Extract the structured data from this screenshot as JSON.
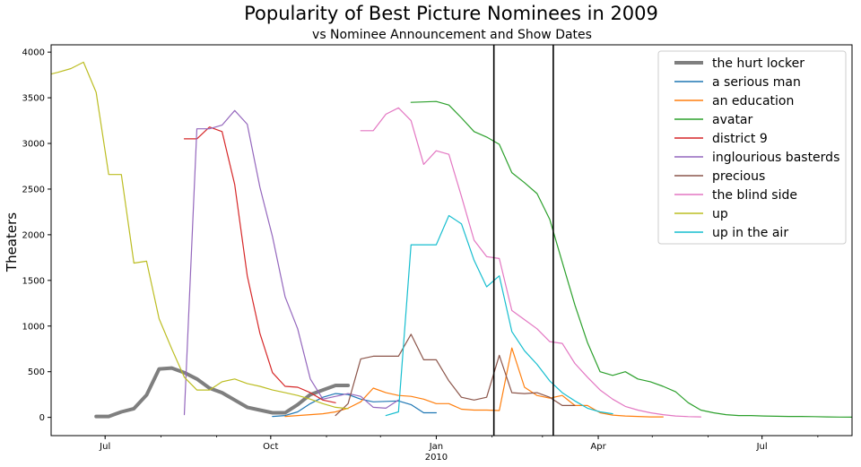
{
  "chart_data": {
    "type": "line",
    "title": "Popularity of Best Picture Nominees in 2009",
    "subtitle": "vs Nominee Announcement and Show Dates",
    "xlabel": "",
    "ylabel": "Theaters",
    "x_start": "2009-06-01",
    "x_end": "2010-08-20",
    "ylim": [
      -200,
      4080
    ],
    "y_ticks": [
      0,
      500,
      1000,
      1500,
      2000,
      2500,
      3000,
      3500,
      4000
    ],
    "x_ticks": [
      {
        "date": "2009-07-01",
        "label": "Jul"
      },
      {
        "date": "2009-10-01",
        "label": "Oct"
      },
      {
        "date": "2010-01-01",
        "label": "Jan"
      },
      {
        "date": "2010-04-01",
        "label": "Apr"
      },
      {
        "date": "2010-07-01",
        "label": "Jul"
      }
    ],
    "x_sublabel": {
      "date": "2010-01-01",
      "label": "2010"
    },
    "grid": false,
    "legend_position": "top-right",
    "vlines": [
      "2010-02-02",
      "2010-03-07"
    ],
    "series": [
      {
        "name": "the hurt locker",
        "color": "#7f7f7f",
        "width": 4,
        "x": [
          "2009-06-26",
          "2009-07-03",
          "2009-07-10",
          "2009-07-17",
          "2009-07-24",
          "2009-07-31",
          "2009-08-07",
          "2009-08-14",
          "2009-08-21",
          "2009-08-28",
          "2009-09-04",
          "2009-09-11",
          "2009-09-18",
          "2009-09-25",
          "2009-10-02",
          "2009-10-09",
          "2009-10-16",
          "2009-10-23",
          "2009-10-30",
          "2009-11-06",
          "2009-11-13"
        ],
        "values": [
          10,
          10,
          60,
          95,
          245,
          530,
          540,
          490,
          420,
          320,
          270,
          190,
          110,
          80,
          50,
          50,
          140,
          250,
          300,
          350,
          350
        ]
      },
      {
        "name": "a serious man",
        "color": "#1f77b4",
        "width": 1.2,
        "x": [
          "2009-10-02",
          "2009-10-09",
          "2009-10-16",
          "2009-10-23",
          "2009-10-30",
          "2009-11-06",
          "2009-11-13",
          "2009-11-20",
          "2009-11-27",
          "2009-12-04",
          "2009-12-11",
          "2009-12-18",
          "2009-12-25",
          "2010-01-01"
        ],
        "values": [
          10,
          20,
          60,
          150,
          220,
          260,
          250,
          200,
          170,
          175,
          180,
          140,
          50,
          50
        ]
      },
      {
        "name": "an education",
        "color": "#ff7f0e",
        "width": 1.2,
        "x": [
          "2009-10-09",
          "2009-10-16",
          "2009-10-23",
          "2009-10-30",
          "2009-11-06",
          "2009-11-13",
          "2009-11-20",
          "2009-11-27",
          "2009-12-04",
          "2009-12-11",
          "2009-12-18",
          "2009-12-25",
          "2010-01-01",
          "2010-01-08",
          "2010-01-15",
          "2010-01-22",
          "2010-01-29",
          "2010-02-05",
          "2010-02-12",
          "2010-02-19",
          "2010-02-26",
          "2010-03-05",
          "2010-03-12",
          "2010-03-19",
          "2010-03-26",
          "2010-04-02",
          "2010-04-09",
          "2010-04-16",
          "2010-04-23",
          "2010-04-30",
          "2010-05-07"
        ],
        "values": [
          10,
          20,
          30,
          40,
          60,
          100,
          170,
          320,
          270,
          240,
          230,
          200,
          150,
          150,
          90,
          80,
          80,
          75,
          760,
          330,
          240,
          210,
          240,
          130,
          130,
          50,
          25,
          15,
          10,
          5,
          5
        ]
      },
      {
        "name": "avatar",
        "color": "#2ca02c",
        "width": 1.2,
        "x": [
          "2009-12-18",
          "2009-12-25",
          "2010-01-01",
          "2010-01-08",
          "2010-01-15",
          "2010-01-22",
          "2010-01-29",
          "2010-02-05",
          "2010-02-12",
          "2010-02-19",
          "2010-02-26",
          "2010-03-05",
          "2010-03-12",
          "2010-03-19",
          "2010-03-26",
          "2010-04-02",
          "2010-04-09",
          "2010-04-16",
          "2010-04-23",
          "2010-04-30",
          "2010-05-07",
          "2010-05-14",
          "2010-05-21",
          "2010-05-28",
          "2010-06-04",
          "2010-06-11",
          "2010-06-18",
          "2010-06-25",
          "2010-07-02",
          "2010-07-09",
          "2010-07-16",
          "2010-07-23",
          "2010-07-30",
          "2010-08-06",
          "2010-08-13",
          "2010-08-20"
        ],
        "values": [
          3450,
          3455,
          3460,
          3420,
          3280,
          3130,
          3070,
          2990,
          2680,
          2570,
          2450,
          2170,
          1700,
          1230,
          820,
          500,
          460,
          500,
          420,
          390,
          340,
          280,
          160,
          80,
          50,
          30,
          20,
          20,
          15,
          12,
          10,
          10,
          8,
          5,
          3,
          2
        ]
      },
      {
        "name": "district 9",
        "color": "#d62728",
        "width": 1.2,
        "x": [
          "2009-08-14",
          "2009-08-21",
          "2009-08-28",
          "2009-09-04",
          "2009-09-11",
          "2009-09-18",
          "2009-09-25",
          "2009-10-02",
          "2009-10-09",
          "2009-10-16",
          "2009-10-23",
          "2009-10-30",
          "2009-11-06"
        ],
        "values": [
          3050,
          3050,
          3180,
          3130,
          2550,
          1550,
          920,
          490,
          340,
          330,
          270,
          190,
          160
        ]
      },
      {
        "name": "inglourious basterds",
        "color": "#9467bd",
        "width": 1.2,
        "x": [
          "2009-08-14",
          "2009-08-21",
          "2009-08-28",
          "2009-09-04",
          "2009-09-11",
          "2009-09-18",
          "2009-09-25",
          "2009-10-02",
          "2009-10-09",
          "2009-10-16",
          "2009-10-23",
          "2009-10-30",
          "2009-11-06",
          "2009-11-13",
          "2009-11-20",
          "2009-11-27",
          "2009-12-04",
          "2009-12-11"
        ],
        "values": [
          30,
          3160,
          3160,
          3200,
          3360,
          3210,
          2520,
          1980,
          1320,
          970,
          420,
          200,
          230,
          260,
          230,
          110,
          100,
          190
        ]
      },
      {
        "name": "precious",
        "color": "#8c564b",
        "width": 1.2,
        "x": [
          "2009-11-06",
          "2009-11-13",
          "2009-11-20",
          "2009-11-27",
          "2009-12-04",
          "2009-12-11",
          "2009-12-18",
          "2009-12-25",
          "2010-01-01",
          "2010-01-08",
          "2010-01-15",
          "2010-01-22",
          "2010-01-29",
          "2010-02-05",
          "2010-02-12",
          "2010-02-19",
          "2010-02-26",
          "2010-03-05",
          "2010-03-12",
          "2010-03-19"
        ],
        "values": [
          20,
          150,
          640,
          670,
          670,
          670,
          910,
          630,
          630,
          400,
          220,
          190,
          220,
          680,
          270,
          260,
          270,
          220,
          130,
          130
        ]
      },
      {
        "name": "the blind side",
        "color": "#e377c2",
        "width": 1.2,
        "x": [
          "2009-11-20",
          "2009-11-27",
          "2009-12-04",
          "2009-12-11",
          "2009-12-18",
          "2009-12-25",
          "2010-01-01",
          "2010-01-08",
          "2010-01-15",
          "2010-01-22",
          "2010-01-29",
          "2010-02-05",
          "2010-02-12",
          "2010-02-19",
          "2010-02-26",
          "2010-03-05",
          "2010-03-12",
          "2010-03-19",
          "2010-03-26",
          "2010-04-02",
          "2010-04-09",
          "2010-04-16",
          "2010-04-23",
          "2010-04-30",
          "2010-05-07",
          "2010-05-14",
          "2010-05-21",
          "2010-05-28"
        ],
        "values": [
          3140,
          3140,
          3320,
          3390,
          3250,
          2770,
          2920,
          2880,
          2420,
          1940,
          1760,
          1740,
          1170,
          1070,
          970,
          830,
          810,
          590,
          440,
          300,
          200,
          120,
          80,
          50,
          30,
          15,
          8,
          5
        ]
      },
      {
        "name": "up",
        "color": "#bcbd22",
        "width": 1.2,
        "x": [
          "2009-06-01",
          "2009-06-05",
          "2009-06-12",
          "2009-06-19",
          "2009-06-26",
          "2009-07-03",
          "2009-07-10",
          "2009-07-17",
          "2009-07-24",
          "2009-07-31",
          "2009-08-07",
          "2009-08-14",
          "2009-08-21",
          "2009-08-28",
          "2009-09-04",
          "2009-09-11",
          "2009-09-18",
          "2009-09-25",
          "2009-10-02",
          "2009-10-09",
          "2009-10-16",
          "2009-10-23",
          "2009-10-30",
          "2009-11-06",
          "2009-11-13"
        ],
        "values": [
          3760,
          3780,
          3820,
          3890,
          3560,
          2660,
          2660,
          1690,
          1710,
          1080,
          750,
          440,
          300,
          300,
          390,
          420,
          370,
          340,
          300,
          270,
          240,
          200,
          150,
          110,
          95
        ]
      },
      {
        "name": "up in the air",
        "color": "#17becf",
        "width": 1.2,
        "x": [
          "2009-12-04",
          "2009-12-11",
          "2009-12-18",
          "2009-12-25",
          "2010-01-01",
          "2010-01-08",
          "2010-01-15",
          "2010-01-22",
          "2010-01-29",
          "2010-02-05",
          "2010-02-12",
          "2010-02-19",
          "2010-02-26",
          "2010-03-05",
          "2010-03-12",
          "2010-03-19",
          "2010-03-26",
          "2010-04-02",
          "2010-04-09"
        ],
        "values": [
          20,
          60,
          1890,
          1890,
          1890,
          2210,
          2120,
          1720,
          1430,
          1550,
          940,
          730,
          580,
          400,
          270,
          180,
          100,
          60,
          40
        ]
      }
    ]
  }
}
